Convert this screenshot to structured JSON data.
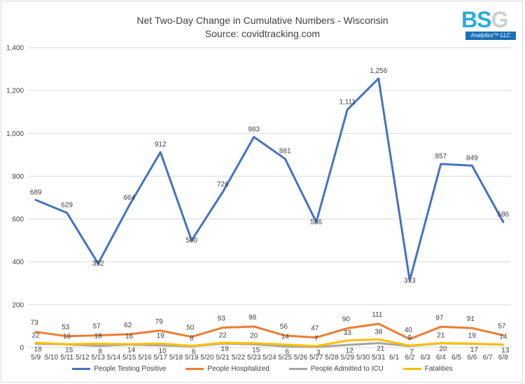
{
  "title": "Net Two-Day Change in Cumulative Numbers - Wisconsin",
  "subtitle": "Source: covidtracking.com",
  "logo": {
    "mark_left": "BS",
    "mark_right": "G",
    "sub": "Analytics™ LLC"
  },
  "colors": {
    "grid": "#d9d9d9",
    "axis_text": "#404040"
  },
  "chart_data": {
    "type": "line",
    "title": "Net Two-Day Change in Cumulative Numbers - Wisconsin",
    "subtitle": "Source: covidtracking.com",
    "xlabel": "",
    "ylabel": "",
    "ylim": [
      0,
      1400
    ],
    "yticks": [
      0,
      200,
      400,
      600,
      800,
      1000,
      1200,
      1400
    ],
    "ytick_labels": [
      "0",
      "200",
      "400",
      "600",
      "800",
      "1,000",
      "1,200",
      "1,400"
    ],
    "grid": true,
    "legend_position": "bottom",
    "categories": [
      "5/9",
      "5/10",
      "5/11",
      "5/12",
      "5/13",
      "5/14",
      "5/15",
      "5/16",
      "5/17",
      "5/18",
      "5/19",
      "5/20",
      "5/21",
      "5/22",
      "5/23",
      "5/24",
      "5/25",
      "5/26",
      "5/27",
      "5/28",
      "5/29",
      "5/30",
      "5/31",
      "6/1",
      "6/2",
      "6/3",
      "6/4",
      "6/5",
      "6/6",
      "6/7",
      "6/8"
    ],
    "series": [
      {
        "name": "People Testing Positive",
        "color": "#4472c4",
        "x": [
          "5/9",
          "5/11",
          "5/13",
          "5/15",
          "5/17",
          "5/19",
          "5/21",
          "5/23",
          "5/25",
          "5/27",
          "5/29",
          "5/31",
          "6/2",
          "6/4",
          "6/6",
          "6/8"
        ],
        "values": [
          689,
          629,
          392,
          664,
          912,
          500,
          726,
          983,
          881,
          586,
          1111,
          1256,
          313,
          857,
          849,
          586
        ],
        "labels": [
          "689",
          "629",
          "392",
          "664",
          "912",
          "500",
          "726",
          "983",
          "881",
          "586",
          "1,111",
          "1,256",
          "313",
          "857",
          "849",
          "586"
        ]
      },
      {
        "name": "People Hospitalized",
        "color": "#ed7d31",
        "x": [
          "5/9",
          "5/11",
          "5/13",
          "5/15",
          "5/17",
          "5/19",
          "5/21",
          "5/23",
          "5/25",
          "5/27",
          "5/29",
          "5/31",
          "6/2",
          "6/4",
          "6/6",
          "6/8"
        ],
        "values": [
          73,
          53,
          57,
          62,
          79,
          50,
          93,
          98,
          56,
          47,
          90,
          111,
          40,
          97,
          91,
          57
        ],
        "labels": [
          "73",
          "53",
          "57",
          "62",
          "79",
          "50",
          "93",
          "98",
          "56",
          "47",
          "90",
          "111",
          "40",
          "97",
          "91",
          "57"
        ]
      },
      {
        "name": "People Admitted to ICU",
        "color": "#a5a5a5",
        "x": [
          "5/9",
          "5/11",
          "5/13",
          "5/15",
          "5/17",
          "5/19",
          "5/21",
          "5/23",
          "5/25",
          "5/27",
          "5/29",
          "5/31",
          "6/2",
          "6/4",
          "6/6",
          "6/8"
        ],
        "values": [
          18,
          15,
          8,
          14,
          10,
          6,
          19,
          15,
          6,
          3,
          12,
          21,
          7,
          20,
          17,
          13
        ],
        "labels": [
          "18",
          "15",
          "8",
          "14",
          "10",
          "6",
          "19",
          "15",
          "6",
          "3",
          "12",
          "21",
          "7",
          "20",
          "17",
          "13"
        ]
      },
      {
        "name": "Fatalities",
        "color": "#ffc000",
        "x": [
          "5/9",
          "5/11",
          "5/13",
          "5/15",
          "5/17",
          "5/19",
          "5/21",
          "5/23",
          "5/25",
          "5/27",
          "5/29",
          "5/31",
          "6/2",
          "6/4",
          "6/6",
          "6/8"
        ],
        "values": [
          22,
          16,
          18,
          16,
          19,
          8,
          22,
          20,
          14,
          7,
          33,
          38,
          9,
          21,
          19,
          14
        ],
        "labels": [
          "22",
          "16",
          "18",
          "16",
          "19",
          "8",
          "22",
          "20",
          "14",
          "7",
          "33",
          "38",
          "9",
          "21",
          "19",
          "14"
        ]
      }
    ]
  }
}
